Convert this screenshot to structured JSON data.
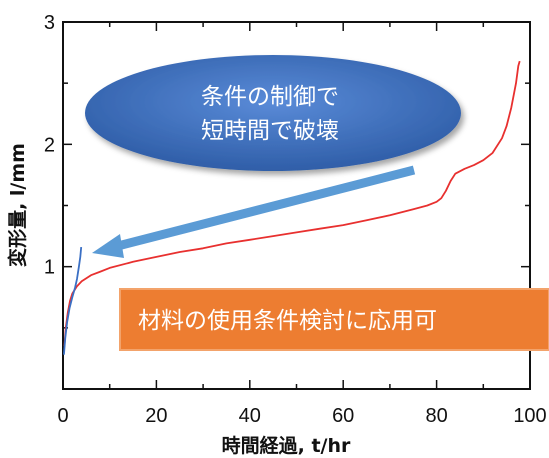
{
  "chart_data": {
    "type": "line",
    "title": "",
    "xlabel": "時間経過, t/hr",
    "ylabel": "変形量, l/mm",
    "xlim": [
      0,
      100
    ],
    "ylim": [
      0,
      3
    ],
    "x_ticks": [
      "0",
      "20",
      "40",
      "60",
      "80",
      "100"
    ],
    "y_ticks": [
      "1",
      "2",
      "3"
    ],
    "grid": false,
    "series": [
      {
        "color": "#e8302f",
        "points": [
          [
            0.3,
            0.35
          ],
          [
            0.6,
            0.5
          ],
          [
            1,
            0.62
          ],
          [
            1.5,
            0.72
          ],
          [
            2,
            0.78
          ],
          [
            3,
            0.84
          ],
          [
            4,
            0.88
          ],
          [
            6,
            0.93
          ],
          [
            8,
            0.96
          ],
          [
            10,
            0.99
          ],
          [
            15,
            1.04
          ],
          [
            20,
            1.08
          ],
          [
            25,
            1.12
          ],
          [
            30,
            1.15
          ],
          [
            35,
            1.19
          ],
          [
            40,
            1.22
          ],
          [
            45,
            1.25
          ],
          [
            50,
            1.28
          ],
          [
            55,
            1.31
          ],
          [
            60,
            1.34
          ],
          [
            65,
            1.38
          ],
          [
            70,
            1.42
          ],
          [
            75,
            1.47
          ],
          [
            78,
            1.5
          ],
          [
            80,
            1.53
          ],
          [
            81,
            1.56
          ],
          [
            82,
            1.62
          ],
          [
            83,
            1.7
          ],
          [
            84,
            1.76
          ],
          [
            86,
            1.8
          ],
          [
            88,
            1.83
          ],
          [
            90,
            1.87
          ],
          [
            92,
            1.93
          ],
          [
            94,
            2.05
          ],
          [
            95,
            2.15
          ],
          [
            96,
            2.3
          ],
          [
            97,
            2.5
          ],
          [
            97.5,
            2.64
          ],
          [
            97.8,
            2.68
          ]
        ]
      },
      {
        "color": "#3a6fc4",
        "points": [
          [
            0.2,
            0.28
          ],
          [
            0.5,
            0.42
          ],
          [
            0.9,
            0.55
          ],
          [
            1.4,
            0.66
          ],
          [
            2,
            0.75
          ],
          [
            2.6,
            0.83
          ],
          [
            3,
            0.9
          ],
          [
            3.4,
            1.0
          ],
          [
            3.7,
            1.08
          ],
          [
            3.9,
            1.16
          ]
        ]
      }
    ],
    "annotations": {
      "ellipse_line1": "条件の制御で",
      "ellipse_line2": "短時間で破壊",
      "banner": "材料の使用条件検討に応用可"
    }
  },
  "colors": {
    "ellipse": "#3f6fc0",
    "arrow": "#5b9bd5",
    "banner": "#ed7d31"
  }
}
